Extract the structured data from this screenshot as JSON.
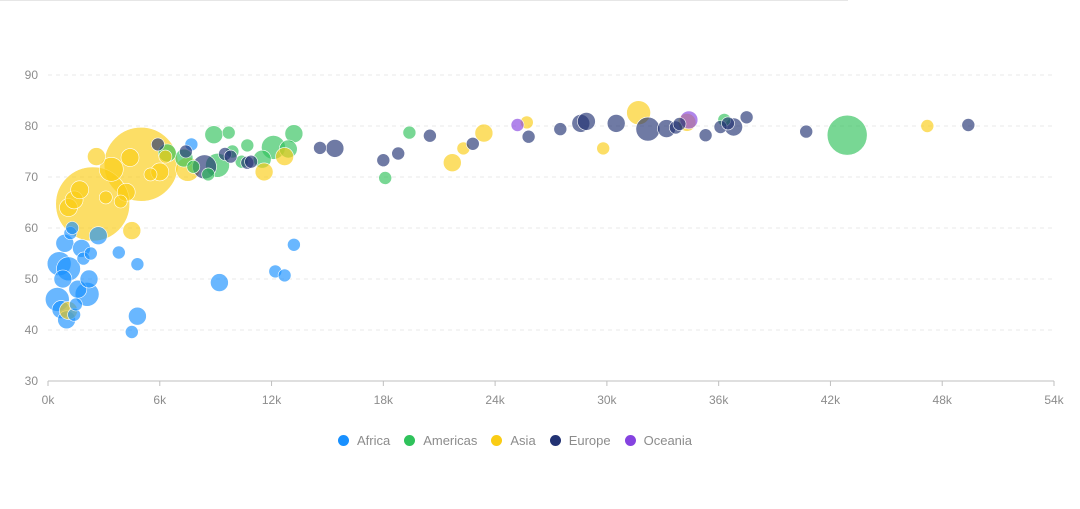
{
  "chart_data": {
    "type": "scatter",
    "variant": "bubble",
    "xlabel": "",
    "ylabel": "",
    "xlim": [
      0,
      54000
    ],
    "ylim": [
      30,
      90
    ],
    "x_ticks": [
      0,
      6000,
      12000,
      18000,
      24000,
      30000,
      36000,
      42000,
      48000,
      54000
    ],
    "x_tick_labels": [
      "0k",
      "6k",
      "12k",
      "18k",
      "24k",
      "30k",
      "36k",
      "42k",
      "48k",
      "54k"
    ],
    "y_ticks": [
      30,
      40,
      50,
      60,
      70,
      80,
      90
    ],
    "y_tick_labels": [
      "30",
      "40",
      "50",
      "60",
      "70",
      "80",
      "90"
    ],
    "grid": "horizontal dashed",
    "legend_position": "bottom-center",
    "series": [
      {
        "name": "Africa",
        "color": "#1890ff",
        "points": [
          [
            600,
            53,
            2
          ],
          [
            900,
            57,
            1
          ],
          [
            500,
            46,
            2
          ],
          [
            1100,
            52,
            2
          ],
          [
            1600,
            48,
            1
          ],
          [
            2100,
            47,
            2
          ],
          [
            700,
            44,
            1
          ],
          [
            1000,
            42,
            1
          ],
          [
            2700,
            58.5,
            1
          ],
          [
            1800,
            56,
            1
          ],
          [
            2200,
            50,
            1
          ],
          [
            1400,
            43,
            0
          ],
          [
            1200,
            59,
            0
          ],
          [
            800,
            50,
            1
          ],
          [
            1900,
            54,
            0
          ],
          [
            2300,
            55,
            0
          ],
          [
            1500,
            45,
            0
          ],
          [
            3800,
            55.2,
            0
          ],
          [
            4800,
            52.9,
            0
          ],
          [
            4800,
            42.7,
            1
          ],
          [
            4500,
            39.6,
            0
          ],
          [
            9200,
            49.3,
            1
          ],
          [
            12200,
            51.5,
            0
          ],
          [
            12700,
            50.7,
            0
          ],
          [
            13200,
            56.7,
            0
          ],
          [
            7700,
            76.4,
            0
          ],
          [
            1300,
            60,
            0
          ]
        ]
      },
      {
        "name": "Americas",
        "color": "#2fc25b",
        "points": [
          [
            12100,
            75.8,
            2
          ],
          [
            13200,
            78.5,
            1
          ],
          [
            9100,
            72.3,
            2
          ],
          [
            8900,
            78.3,
            1
          ],
          [
            9700,
            78.7,
            0
          ],
          [
            10700,
            76.2,
            0
          ],
          [
            11500,
            73.5,
            1
          ],
          [
            12900,
            75.5,
            1
          ],
          [
            19400,
            78.7,
            0
          ],
          [
            18100,
            69.8,
            0
          ],
          [
            7300,
            73.7,
            1
          ],
          [
            6400,
            74.7,
            1
          ],
          [
            7800,
            72,
            0
          ],
          [
            10400,
            73,
            0
          ],
          [
            8600,
            70.5,
            0
          ],
          [
            42900,
            78.2,
            4
          ],
          [
            36300,
            81.2,
            0
          ],
          [
            9900,
            75,
            0
          ]
        ]
      },
      {
        "name": "Asia",
        "color": "#facc14",
        "points": [
          [
            5000,
            72.5,
            5
          ],
          [
            2400,
            64.7,
            5
          ],
          [
            1100,
            64,
            1
          ],
          [
            1400,
            65.5,
            1
          ],
          [
            2600,
            74,
            1
          ],
          [
            3400,
            71.5,
            2
          ],
          [
            4400,
            73.8,
            1
          ],
          [
            4200,
            67,
            1
          ],
          [
            6000,
            71,
            1
          ],
          [
            7500,
            71.5,
            2
          ],
          [
            6300,
            74,
            0
          ],
          [
            4500,
            59.5,
            1
          ],
          [
            1100,
            43.8,
            1
          ],
          [
            1700,
            67.5,
            1
          ],
          [
            3100,
            66,
            0
          ],
          [
            11600,
            71,
            1
          ],
          [
            12700,
            74,
            1
          ],
          [
            21700,
            72.8,
            1
          ],
          [
            22300,
            75.6,
            0
          ],
          [
            23400,
            78.6,
            1
          ],
          [
            25700,
            80.7,
            0
          ],
          [
            29800,
            75.6,
            0
          ],
          [
            31700,
            82.6,
            2
          ],
          [
            34300,
            80.7,
            1
          ],
          [
            47200,
            80,
            0
          ],
          [
            3900,
            65.2,
            0
          ],
          [
            5500,
            70.5,
            0
          ]
        ]
      },
      {
        "name": "Europe",
        "color": "#223273",
        "points": [
          [
            5900,
            76.4,
            0
          ],
          [
            7400,
            75,
            0
          ],
          [
            8400,
            72,
            2
          ],
          [
            9500,
            74.5,
            0
          ],
          [
            9800,
            74,
            0
          ],
          [
            10700,
            72.8,
            0
          ],
          [
            14600,
            75.7,
            0
          ],
          [
            15400,
            75.6,
            1
          ],
          [
            18000,
            73.3,
            0
          ],
          [
            18800,
            74.6,
            0
          ],
          [
            20500,
            78.1,
            0
          ],
          [
            22800,
            76.5,
            0
          ],
          [
            25800,
            77.9,
            0
          ],
          [
            27500,
            79.4,
            0
          ],
          [
            28600,
            80.5,
            1
          ],
          [
            28900,
            80.9,
            1
          ],
          [
            30500,
            80.5,
            1
          ],
          [
            32200,
            79.4,
            2
          ],
          [
            33200,
            79.5,
            1
          ],
          [
            33700,
            79.7,
            0
          ],
          [
            33900,
            80.4,
            0
          ],
          [
            35300,
            78.2,
            0
          ],
          [
            36100,
            79.8,
            0
          ],
          [
            36500,
            80.5,
            0
          ],
          [
            36800,
            79.8,
            1
          ],
          [
            37500,
            81.7,
            0
          ],
          [
            40700,
            78.9,
            0
          ],
          [
            49400,
            80.2,
            0
          ],
          [
            10900,
            73,
            0
          ]
        ]
      },
      {
        "name": "Oceania",
        "color": "#8543e0",
        "points": [
          [
            25200,
            80.2,
            0
          ],
          [
            34400,
            81.2,
            1
          ]
        ]
      }
    ],
    "point_format": "[gdp_per_capita, life_expectancy, size_class]"
  }
}
